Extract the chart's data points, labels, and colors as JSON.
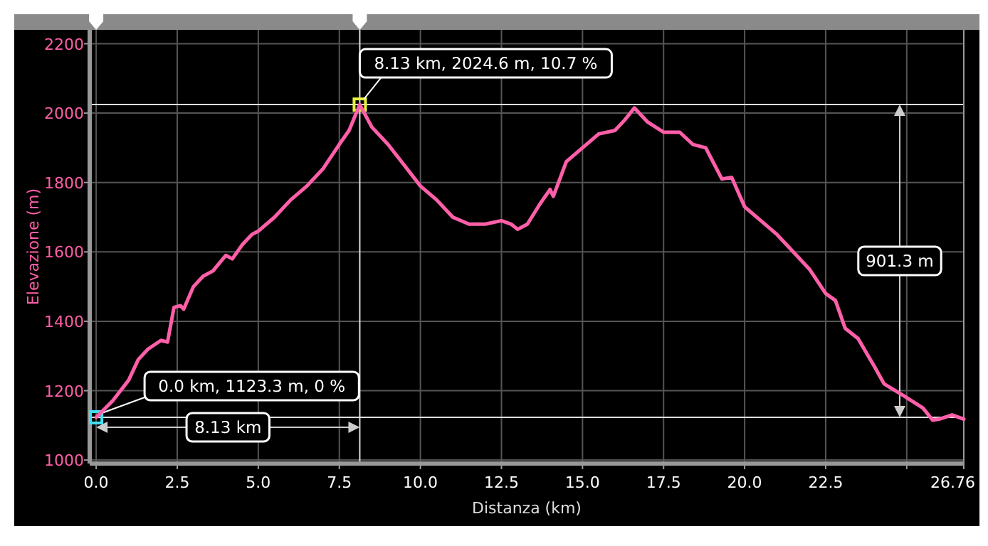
{
  "chart_data": {
    "type": "line",
    "xlabel": "Distanza (km)",
    "ylabel": "Elevazione (m)",
    "x": [
      0,
      0.5,
      1.0,
      1.3,
      1.6,
      2.0,
      2.2,
      2.4,
      2.6,
      2.7,
      3.0,
      3.3,
      3.6,
      4.0,
      4.2,
      4.5,
      4.8,
      5.0,
      5.5,
      6.0,
      6.5,
      7.0,
      7.5,
      7.8,
      8.13,
      8.5,
      9.0,
      9.5,
      10.0,
      10.5,
      11.0,
      11.5,
      12.0,
      12.5,
      12.8,
      13.0,
      13.3,
      13.7,
      14.0,
      14.1,
      14.5,
      15.0,
      15.5,
      16.0,
      16.3,
      16.6,
      17.0,
      17.5,
      18.0,
      18.4,
      18.8,
      19.3,
      19.6,
      20.0,
      20.5,
      21.0,
      21.5,
      22.0,
      22.5,
      22.8,
      23.1,
      23.5,
      24.0,
      24.3,
      25.0,
      25.5,
      25.8,
      26.0,
      26.4,
      26.76
    ],
    "series": [
      {
        "color": "#ff5fa8",
        "values": [
          1123.3,
          1170,
          1230,
          1290,
          1320,
          1345,
          1340,
          1440,
          1445,
          1435,
          1500,
          1530,
          1545,
          1590,
          1580,
          1620,
          1650,
          1660,
          1700,
          1750,
          1790,
          1840,
          1910,
          1950,
          2024.6,
          1960,
          1910,
          1850,
          1790,
          1750,
          1700,
          1680,
          1680,
          1690,
          1680,
          1665,
          1680,
          1740,
          1780,
          1760,
          1860,
          1900,
          1940,
          1950,
          1980,
          2015,
          1975,
          1945,
          1945,
          1910,
          1900,
          1810,
          1815,
          1730,
          1690,
          1650,
          1600,
          1550,
          1480,
          1460,
          1380,
          1350,
          1270,
          1220,
          1180,
          1150,
          1115,
          1118,
          1130,
          1118
        ]
      }
    ],
    "xlim": [
      -0.2,
      26.76
    ],
    "ylim": [
      990,
      2240
    ],
    "xticks": [
      {
        "value": 0,
        "label": "0.0"
      },
      {
        "value": 2.5,
        "label": "2.5"
      },
      {
        "value": 5,
        "label": "5.0"
      },
      {
        "value": 7.5,
        "label": "7.5"
      },
      {
        "value": 10,
        "label": "10.0"
      },
      {
        "value": 12.5,
        "label": "12.5"
      },
      {
        "value": 15,
        "label": "15.0"
      },
      {
        "value": 17.5,
        "label": "17.5"
      },
      {
        "value": 20,
        "label": "20.0"
      },
      {
        "value": 22.5,
        "label": "22.5"
      },
      {
        "value": 25,
        "label": null
      },
      {
        "value": 26.76,
        "label": "26.76"
      }
    ],
    "yticks": [
      1000,
      1200,
      1400,
      1600,
      1800,
      2000,
      2200
    ],
    "grid": true,
    "marker": "none",
    "line_style": "solid",
    "ref_lines": [
      {
        "axis": "y",
        "value": 2024.6,
        "color": "#dddddd"
      },
      {
        "axis": "y",
        "value": 1123.3,
        "color": "#dddddd"
      },
      {
        "axis": "x",
        "value": 8.13,
        "color": "#dddddd"
      }
    ],
    "annotations": [
      {
        "text": "8.13 km, 2024.6 m, 10.7 %",
        "x": 8.13,
        "y": 2024.6
      },
      {
        "text": "0.0 km, 1123.3 m, 0 %",
        "x": 0,
        "y": 1123.3
      },
      "8.13 km",
      "901.3 m"
    ]
  }
}
